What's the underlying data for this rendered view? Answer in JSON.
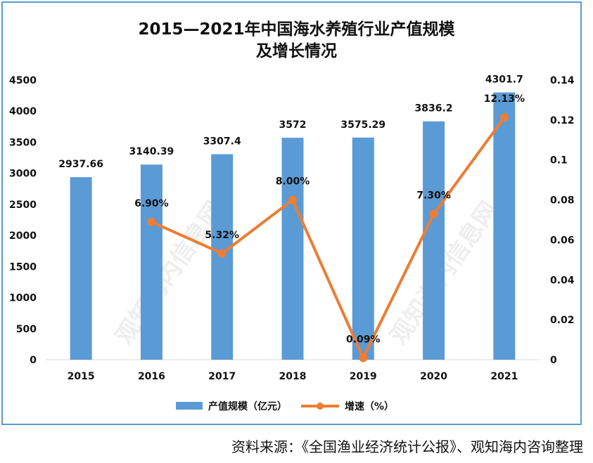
{
  "chart_data": {
    "type": "bar",
    "title": "2015—2021年中国海水养殖行业产值规模",
    "subtitle": "及增长情况",
    "categories": [
      "2015",
      "2016",
      "2017",
      "2018",
      "2019",
      "2020",
      "2021"
    ],
    "series": [
      {
        "name": "产值规模（亿元）",
        "type": "bar",
        "axis": "left",
        "color": "#5b9bd5",
        "values": [
          2937.66,
          3140.39,
          3307.4,
          3572,
          3575.29,
          3836.2,
          4301.7
        ],
        "labels": [
          "2937.66",
          "3140.39",
          "3307.4",
          "3572",
          "3575.29",
          "3836.2",
          "4301.7"
        ]
      },
      {
        "name": "增速（%）",
        "type": "line",
        "axis": "right",
        "color": "#ed7d31",
        "values": [
          null,
          0.069,
          0.0532,
          0.08,
          0.0009,
          0.073,
          0.1213
        ],
        "labels": [
          "",
          "6.90%",
          "5.32%",
          "8.00%",
          "0.09%",
          "7.30%",
          "12.13%"
        ]
      }
    ],
    "y_left": {
      "ylim": [
        0,
        4500
      ],
      "ticks": [
        "0",
        "500",
        "1000",
        "1500",
        "2000",
        "2500",
        "3000",
        "3500",
        "4000",
        "4500"
      ]
    },
    "y_right": {
      "ylim": [
        0,
        0.14
      ],
      "ticks": [
        "0",
        "0.02",
        "0.04",
        "0.06",
        "0.08",
        "0.1",
        "0.12",
        "0.14"
      ]
    },
    "grid": false,
    "legend_position": "bottom"
  },
  "source": "资料来源：《全国渔业经济统计公报》、观知海内咨询整理",
  "watermark": "观知海内信息网"
}
